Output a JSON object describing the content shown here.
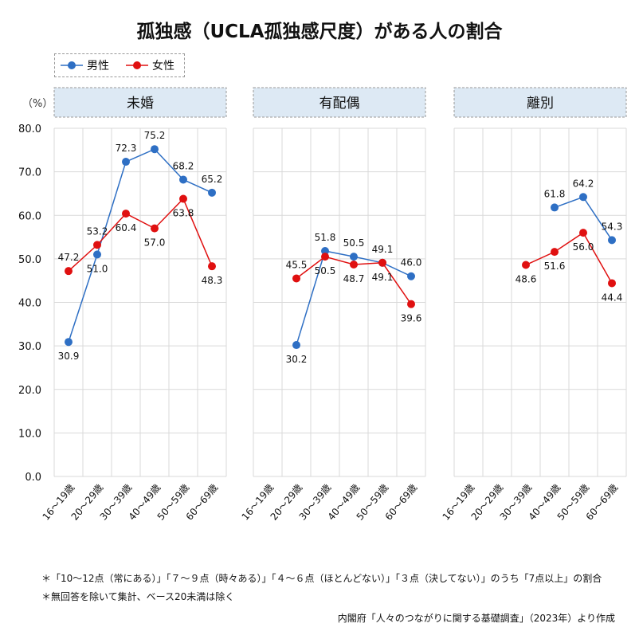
{
  "chart_data": {
    "type": "line",
    "title": "孤独感（UCLA孤独感尺度）がある人の割合",
    "ylabel": "（%）",
    "ylim": [
      0,
      80
    ],
    "yticks": [
      "0.0",
      "10.0",
      "20.0",
      "30.0",
      "40.0",
      "50.0",
      "60.0",
      "70.0",
      "80.0"
    ],
    "categories": [
      "16～19歳",
      "20～29歳",
      "30～39歳",
      "40～49歳",
      "50～59歳",
      "60～69歳"
    ],
    "legend": [
      {
        "name": "男性",
        "color": "#2e6fc4"
      },
      {
        "name": "女性",
        "color": "#e01010"
      }
    ],
    "legend_position": "top-left",
    "panels": [
      {
        "title": "未婚",
        "male": [
          30.9,
          51.0,
          72.3,
          75.2,
          68.2,
          65.2
        ],
        "female": [
          47.2,
          53.2,
          60.4,
          57.0,
          63.8,
          48.3
        ]
      },
      {
        "title": "有配偶",
        "male": [
          null,
          30.2,
          51.8,
          50.5,
          49.1,
          46.0
        ],
        "female": [
          null,
          45.5,
          50.5,
          48.7,
          49.1,
          39.6
        ]
      },
      {
        "title": "離別",
        "male": [
          null,
          null,
          null,
          61.8,
          64.2,
          54.3
        ],
        "female": [
          null,
          null,
          48.6,
          51.6,
          56.0,
          44.4
        ]
      }
    ]
  },
  "notes": {
    "note1": "＊「10～12点（常にある）」「７～９点（時々ある）」「４～６点（ほとんどない）」「３点（決してない）」のうち「7点以上」の割合",
    "note2": "＊無回答を除いて集計、ベース20未満は除く",
    "source": "内閣府「人々のつながりに関する基礎調査」（2023年）より作成"
  }
}
